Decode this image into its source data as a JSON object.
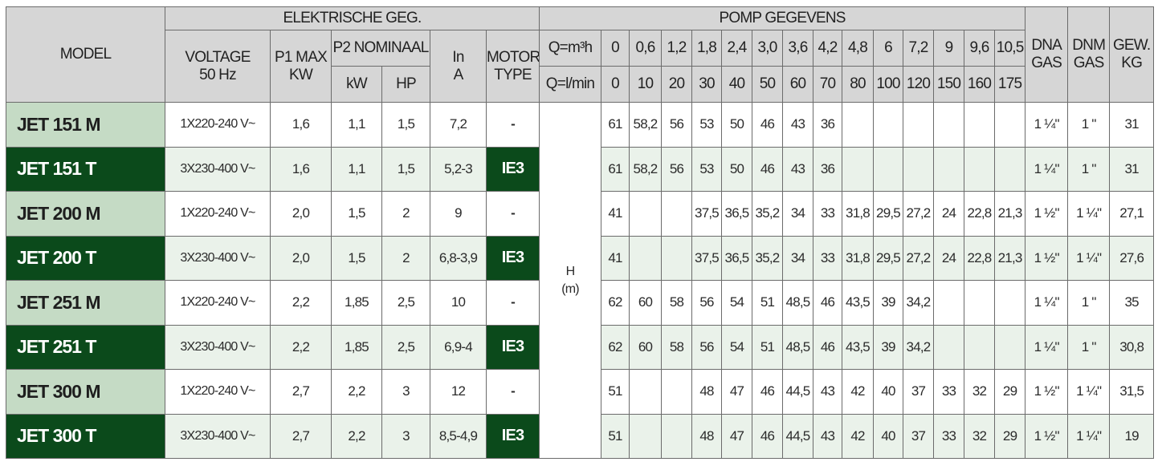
{
  "header": {
    "model": "MODEL",
    "electric_group": "ELEKTRISCHE GEG.",
    "pump_group": "POMP GEGEVENS",
    "voltage": [
      "VOLTAGE",
      "50 Hz"
    ],
    "p1": [
      "P1 MAX",
      "KW"
    ],
    "p2": "P2 NOMINAAL",
    "p2_kw": "kW",
    "p2_hp": "HP",
    "in": [
      "In",
      "A"
    ],
    "motor": [
      "MOTOR",
      "TYPE"
    ],
    "q_m3h": "Q=m³h",
    "q_lmin": "Q=l/min",
    "flows_m3h": [
      "0",
      "0,6",
      "1,2",
      "1,8",
      "2,4",
      "3,0",
      "3,6",
      "4,2",
      "4,8",
      "6",
      "7,2",
      "9",
      "9,6",
      "10,5"
    ],
    "flows_lmin": [
      "0",
      "10",
      "20",
      "30",
      "40",
      "50",
      "60",
      "70",
      "80",
      "100",
      "120",
      "150",
      "160",
      "175"
    ],
    "dna": [
      "DNA",
      "GAS"
    ],
    "dnm": [
      "DNM",
      "GAS"
    ],
    "weight": [
      "GEW.",
      "KG"
    ],
    "head": [
      "H",
      "(m)"
    ]
  },
  "colors": {
    "dark_green": "#0b4a1b",
    "light_green": "#c5dbc5",
    "row_tint": "#eaf2ea",
    "header_gray": "#d6d6d6"
  },
  "rows": [
    {
      "model": "JET 151 M",
      "voltage": "1X220-240 V~",
      "p1": "1,6",
      "kw": "1,1",
      "hp": "1,5",
      "in": "7,2",
      "motor": "-",
      "head": [
        "61",
        "58,2",
        "56",
        "53",
        "50",
        "46",
        "43",
        "36",
        "",
        "",
        "",
        "",
        "",
        ""
      ],
      "dna": "1 ¼\"",
      "dnm": "1 \"",
      "kg": "31"
    },
    {
      "model": "JET 151 T",
      "voltage": "3X230-400 V~",
      "p1": "1,6",
      "kw": "1,1",
      "hp": "1,5",
      "in": "5,2-3",
      "motor": "IE3",
      "head": [
        "61",
        "58,2",
        "56",
        "53",
        "50",
        "46",
        "43",
        "36",
        "",
        "",
        "",
        "",
        "",
        ""
      ],
      "dna": "1 ¼\"",
      "dnm": "1 \"",
      "kg": "31"
    },
    {
      "model": "JET 200 M",
      "voltage": "1X220-240 V~",
      "p1": "2,0",
      "kw": "1,5",
      "hp": "2",
      "in": "9",
      "motor": "-",
      "head": [
        "41",
        "",
        "",
        "37,5",
        "36,5",
        "35,2",
        "34",
        "33",
        "31,8",
        "29,5",
        "27,2",
        "24",
        "22,8",
        "21,3"
      ],
      "dna": "1 ½\"",
      "dnm": "1 ¼\"",
      "kg": "27,1"
    },
    {
      "model": "JET 200 T",
      "voltage": "3X230-400 V~",
      "p1": "2,0",
      "kw": "1,5",
      "hp": "2",
      "in": "6,8-3,9",
      "motor": "IE3",
      "head": [
        "41",
        "",
        "",
        "37,5",
        "36,5",
        "35,2",
        "34",
        "33",
        "31,8",
        "29,5",
        "27,2",
        "24",
        "22,8",
        "21,3"
      ],
      "dna": "1 ½\"",
      "dnm": "1 ¼\"",
      "kg": "27,6"
    },
    {
      "model": "JET 251 M",
      "voltage": "1X220-240 V~",
      "p1": "2,2",
      "kw": "1,85",
      "hp": "2,5",
      "in": "10",
      "motor": "-",
      "head": [
        "62",
        "60",
        "58",
        "56",
        "54",
        "51",
        "48,5",
        "46",
        "43,5",
        "39",
        "34,2",
        "",
        "",
        ""
      ],
      "dna": "1 ¼\"",
      "dnm": "1 \"",
      "kg": "35"
    },
    {
      "model": "JET 251 T",
      "voltage": "3X230-400 V~",
      "p1": "2,2",
      "kw": "1,85",
      "hp": "2,5",
      "in": "6,9-4",
      "motor": "IE3",
      "head": [
        "62",
        "60",
        "58",
        "56",
        "54",
        "51",
        "48,5",
        "46",
        "43,5",
        "39",
        "34,2",
        "",
        "",
        ""
      ],
      "dna": "1 ¼\"",
      "dnm": "1 \"",
      "kg": "30,8"
    },
    {
      "model": "JET 300 M",
      "voltage": "1X220-240 V~",
      "p1": "2,7",
      "kw": "2,2",
      "hp": "3",
      "in": "12",
      "motor": "-",
      "head": [
        "51",
        "",
        "",
        "48",
        "47",
        "46",
        "44,5",
        "43",
        "42",
        "40",
        "37",
        "33",
        "32",
        "29"
      ],
      "dna": "1 ½\"",
      "dnm": "1 ¼\"",
      "kg": "31,5"
    },
    {
      "model": "JET 300 T",
      "voltage": "3X230-400 V~",
      "p1": "2,7",
      "kw": "2,2",
      "hp": "3",
      "in": "8,5-4,9",
      "motor": "IE3",
      "head": [
        "51",
        "",
        "",
        "48",
        "47",
        "46",
        "44,5",
        "43",
        "42",
        "40",
        "37",
        "33",
        "32",
        "29"
      ],
      "dna": "1 ½\"",
      "dnm": "1 ¼\"",
      "kg": "19"
    }
  ]
}
